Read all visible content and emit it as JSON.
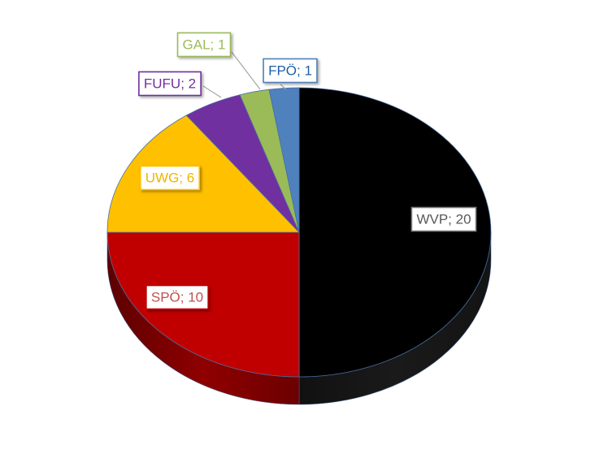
{
  "chart_data": {
    "type": "pie",
    "style": "3d",
    "title": "",
    "slices": [
      {
        "label": "WVP",
        "value": 20,
        "color": "#000000",
        "side_color": "#1a1a1a",
        "text_color": "#595959",
        "text": "WVP; 20"
      },
      {
        "label": "SPÖ",
        "value": 10,
        "color": "#C00000",
        "side_color": "#8f0000",
        "text_color": "#C0504D",
        "text": "SPÖ; 10"
      },
      {
        "label": "UWG",
        "value": 6,
        "color": "#FFC000",
        "side_color": "#c99700",
        "text_color": "#F0B400",
        "text": "UWG; 6"
      },
      {
        "label": "FUFU",
        "value": 2,
        "color": "#7030A0",
        "side_color": "#56237c",
        "text_color": "#7030A0",
        "text": "FUFU; 2"
      },
      {
        "label": "GAL",
        "value": 1,
        "color": "#9BBB59",
        "side_color": "#7a9545",
        "text_color": "#9BBB59",
        "text": "GAL; 1"
      },
      {
        "label": "FPÖ",
        "value": 1,
        "color": "#4F81BD",
        "side_color": "#3c6594",
        "text_color": "#1F5FA8",
        "text": "FPÖ; 1"
      }
    ]
  }
}
